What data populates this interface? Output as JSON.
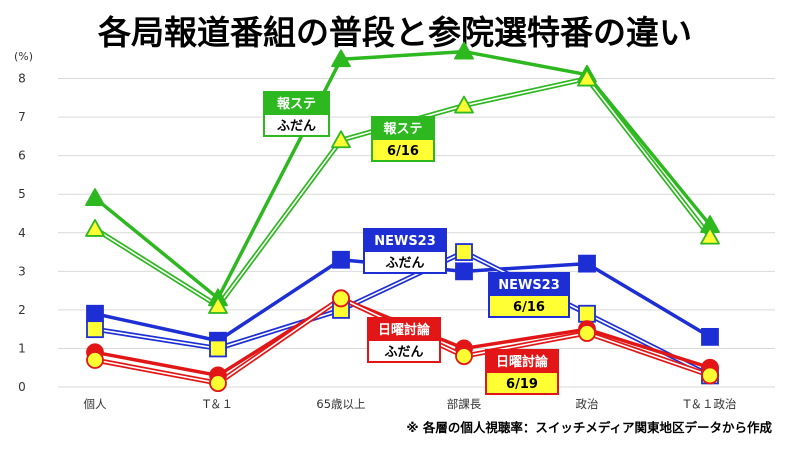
{
  "chart_data": {
    "type": "line",
    "title": "各局報道番組の普段と参院選特番の違い",
    "unit_label": "(%)",
    "note": "※ 各層の個人視聴率：スイッチメディア関東地区データから作成",
    "categories": [
      "個人",
      "T＆１",
      "65歳以上",
      "部課長",
      "政治",
      "T＆１政治"
    ],
    "ylim": [
      0,
      9
    ],
    "yticks": [
      0,
      1,
      2,
      3,
      4,
      5,
      6,
      7,
      8
    ],
    "grid": true,
    "series": [
      {
        "name": "報ステ ふだん",
        "values": [
          4.9,
          2.3,
          8.5,
          8.7,
          8.1,
          4.2
        ],
        "color": "#2db81f",
        "marker": "triangle",
        "markerFill": "#2db81f",
        "style": "thick"
      },
      {
        "name": "報ステ 6/16",
        "values": [
          4.1,
          2.1,
          6.4,
          7.3,
          8.0,
          3.9
        ],
        "color": "#2db81f",
        "marker": "triangle",
        "markerFill": "#ffff33",
        "style": "double"
      },
      {
        "name": "NEWS23 ふだん",
        "values": [
          1.9,
          1.2,
          3.3,
          3.0,
          3.2,
          1.3
        ],
        "color": "#1d2fd4",
        "marker": "square",
        "markerFill": "#1d2fd4",
        "style": "thick"
      },
      {
        "name": "NEWS23 6/16",
        "values": [
          1.5,
          1.0,
          2.0,
          3.5,
          1.9,
          0.3
        ],
        "color": "#1d2fd4",
        "marker": "square",
        "markerFill": "#ffff33",
        "style": "double"
      },
      {
        "name": "日曜討論 ふだん",
        "values": [
          0.9,
          0.3,
          2.3,
          1.0,
          1.5,
          0.5
        ],
        "color": "#e21616",
        "marker": "circle",
        "markerFill": "#e21616",
        "style": "thick"
      },
      {
        "name": "日曜討論 6/19",
        "values": [
          0.7,
          0.1,
          2.3,
          0.8,
          1.4,
          0.3
        ],
        "color": "#e21616",
        "marker": "circle",
        "markerFill": "#ffff33",
        "style": "double"
      }
    ],
    "labels": [
      {
        "top": "報ステ",
        "bottom": "ふだん",
        "color": "#2db81f",
        "bottomFill": "#ffffff"
      },
      {
        "top": "報ステ",
        "bottom": "6/16",
        "color": "#2db81f",
        "bottomFill": "#ffff33"
      },
      {
        "top": "NEWS23",
        "bottom": "ふだん",
        "color": "#1d2fd4",
        "bottomFill": "#ffffff"
      },
      {
        "top": "NEWS23",
        "bottom": "6/16",
        "color": "#1d2fd4",
        "bottomFill": "#ffff33"
      },
      {
        "top": "日曜討論",
        "bottom": "ふだん",
        "color": "#e21616",
        "bottomFill": "#ffffff"
      },
      {
        "top": "日曜討論",
        "bottom": "6/19",
        "color": "#e21616",
        "bottomFill": "#ffff33"
      }
    ]
  }
}
